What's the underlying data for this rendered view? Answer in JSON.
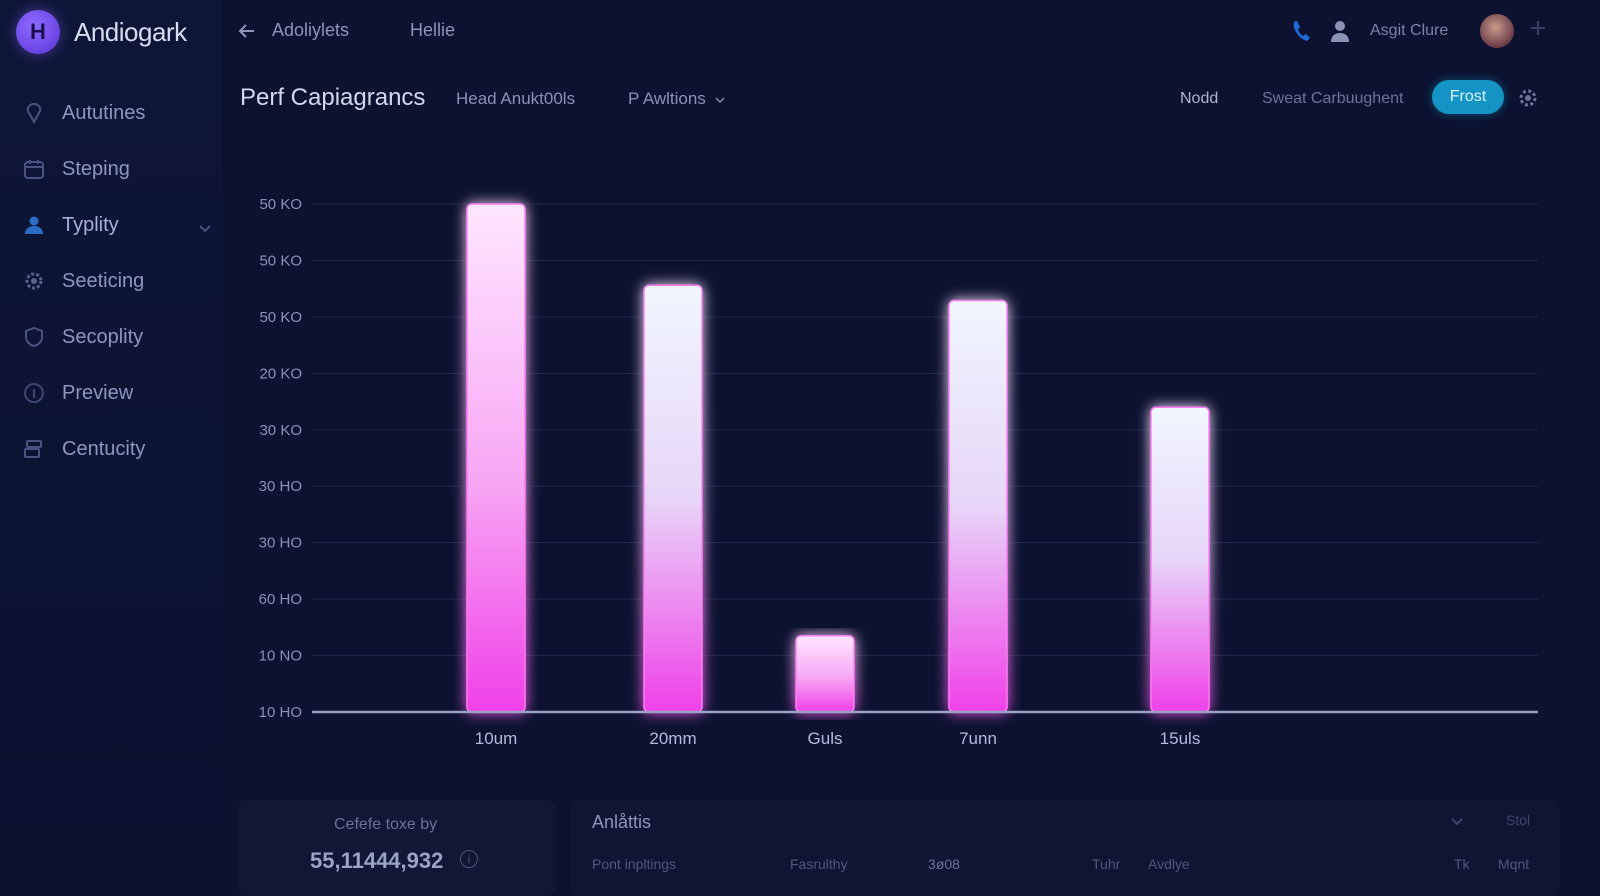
{
  "app": {
    "brand_initial": "H",
    "brand_name": "Andiogark"
  },
  "sidebar": {
    "items": [
      {
        "label": "Aututines",
        "icon": "pin-icon"
      },
      {
        "label": "Steping",
        "icon": "calendar-icon"
      },
      {
        "label": "Typlity",
        "icon": "users-icon",
        "active": true
      },
      {
        "label": "Seeticing",
        "icon": "gear-icon"
      },
      {
        "label": "Secoplity",
        "icon": "shield-icon"
      },
      {
        "label": "Preview",
        "icon": "info-icon"
      },
      {
        "label": "Centucity",
        "icon": "stack-icon"
      }
    ]
  },
  "topbar": {
    "crumb_1": "Adoliylets",
    "crumb_2": "Hellie",
    "user_label": "Asgit Clure"
  },
  "header": {
    "title": "Perf Capiagrancs",
    "tab": "Head Anukt00ls",
    "dropdown": "P Awltions",
    "mode": "Nodd",
    "search_placeholder": "Sweat Carbuughent",
    "button": "Frost"
  },
  "colors": {
    "accent": "#1494c4",
    "bar_top_pink": "#ffe6ff",
    "bar_top_white": "#f0f6ff",
    "bar_bottom": "#f040e8",
    "grid": "#1f2848"
  },
  "chart_data": {
    "type": "bar",
    "title": "",
    "xlabel": "",
    "ylabel": "",
    "y_tick_labels": [
      "50 KO",
      "50 KO",
      "50 KO",
      "20 KO",
      "30 KO",
      "30 HO",
      "30 HO",
      "60 HO",
      "10 NO",
      "10 HO"
    ],
    "categories": [
      "10um",
      "20mm",
      "Guls",
      "7unn",
      "15uls"
    ],
    "values": [
      1.0,
      0.84,
      0.15,
      0.81,
      0.6
    ],
    "value_scale": "fraction of chart height (axis labels unreadable)",
    "bar_styles": [
      "pink",
      "white",
      "pink",
      "white",
      "white"
    ],
    "grid": true,
    "legend": "none"
  },
  "summary": {
    "label": "Cefefe toxe by",
    "value": "55,11444,932",
    "info_icon": "i"
  },
  "analytics": {
    "title": "Anlåttis",
    "right_label": "Stol",
    "row": [
      "Pont inpltings",
      "Fasrulthy",
      "3ø08",
      "Tuhr",
      "Avdlye",
      "Tk",
      "Mqnt"
    ]
  }
}
